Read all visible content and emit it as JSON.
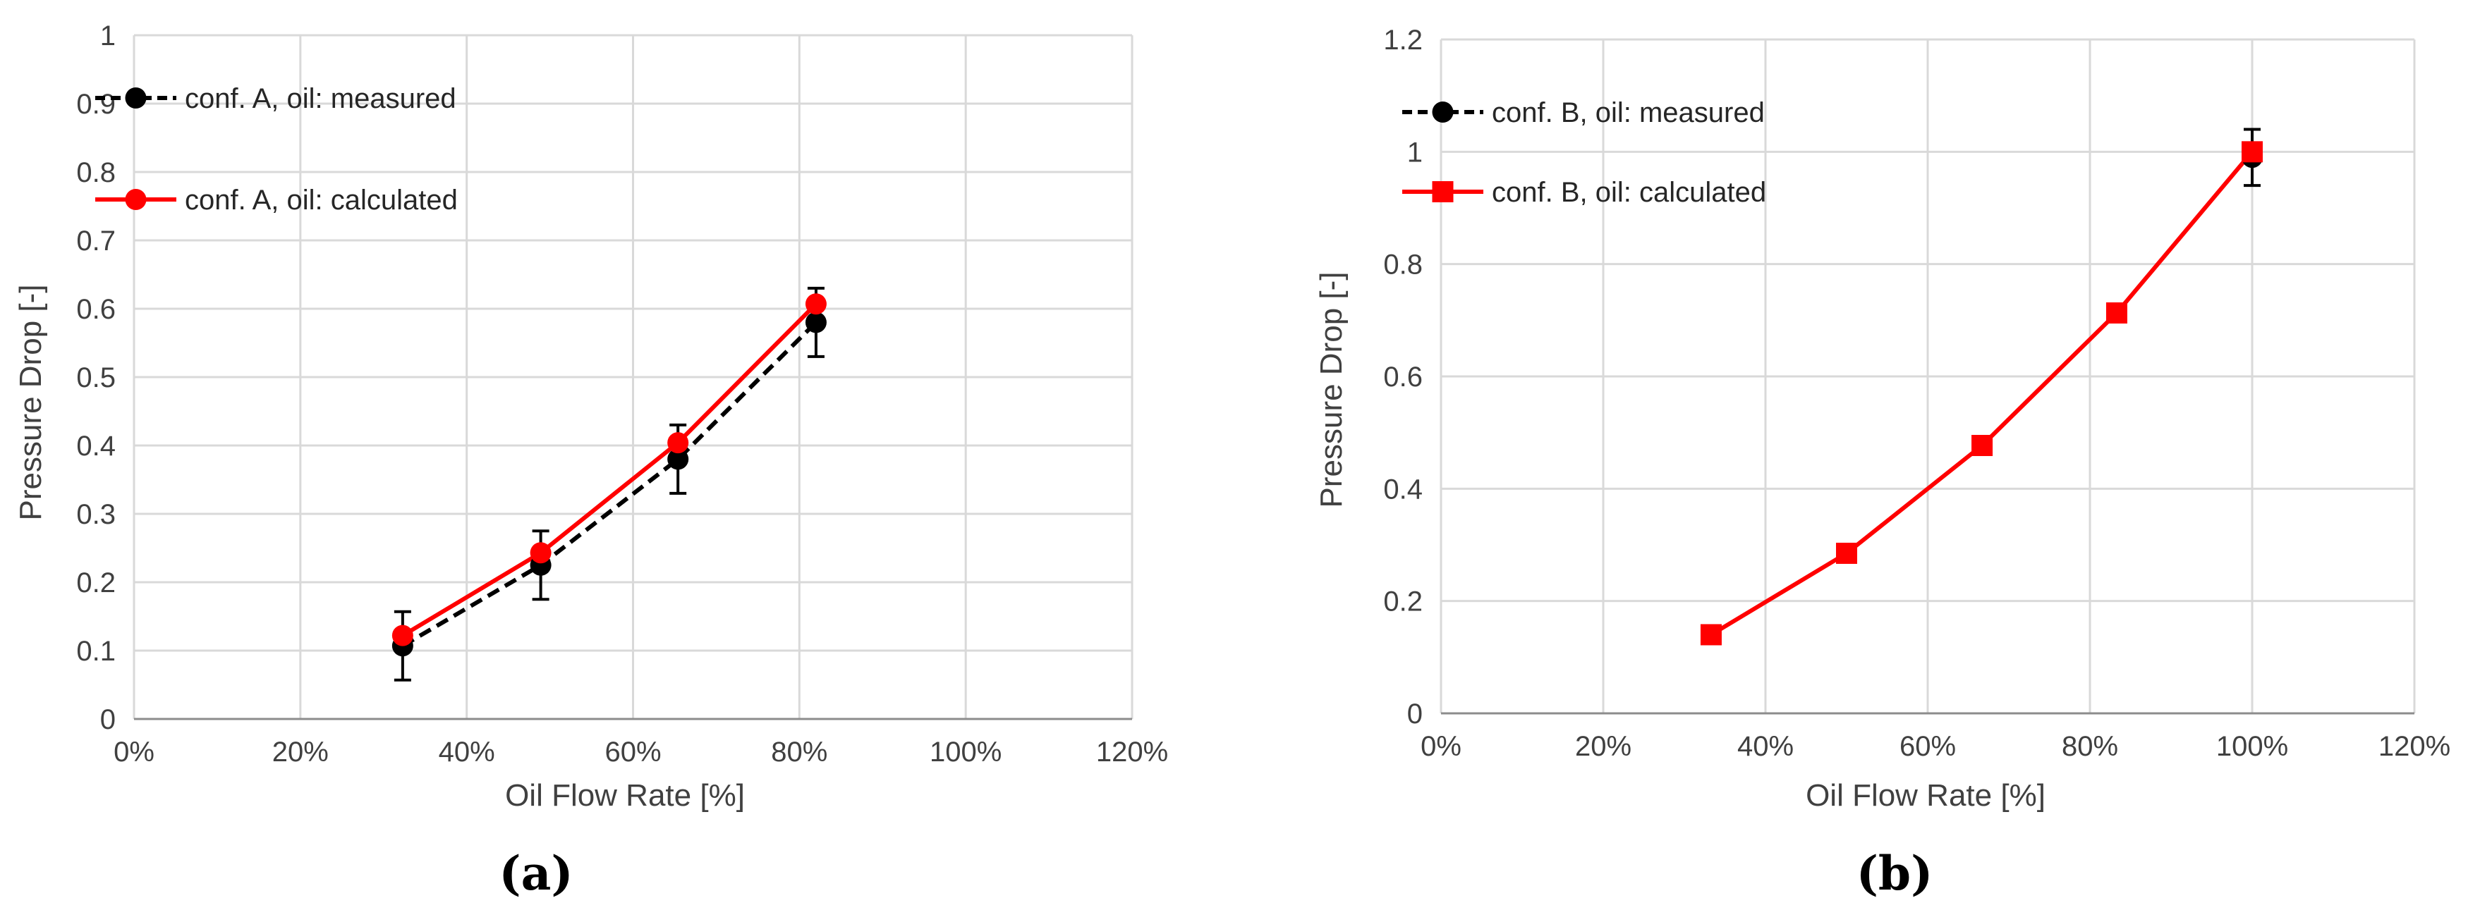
{
  "colors": {
    "measured": "#000000",
    "calculated": "#ff0000"
  },
  "chart_data": [
    {
      "type": "line",
      "caption": "(a)",
      "xlabel": "Oil Flow Rate [%]",
      "ylabel": "Pressure Drop [-]",
      "xlim": [
        0,
        1.2
      ],
      "ylim": [
        0,
        1
      ],
      "xticks": [
        0,
        0.2,
        0.4,
        0.6,
        0.8,
        1.0,
        1.2
      ],
      "xtick_labels": [
        "0%",
        "20%",
        "40%",
        "60%",
        "80%",
        "100%",
        "120%"
      ],
      "yticks": [
        0,
        0.1,
        0.2,
        0.3,
        0.4,
        0.5,
        0.6,
        0.7,
        0.8,
        0.9,
        1
      ],
      "ytick_labels": [
        "0",
        "0.1",
        "0.2",
        "0.3",
        "0.4",
        "0.5",
        "0.6",
        "0.7",
        "0.8",
        "0.9",
        "1"
      ],
      "grid": true,
      "legend_position": "top-left",
      "series": [
        {
          "name": "conf. A, oil: measured",
          "style": "dashed",
          "marker": "circle",
          "color": "#000000",
          "x": [
            0.323,
            0.489,
            0.654,
            0.82
          ],
          "y": [
            0.107,
            0.225,
            0.38,
            0.58
          ],
          "error": [
            0.05,
            0.05,
            0.05,
            0.05
          ]
        },
        {
          "name": "conf. A, oil: calculated",
          "style": "solid",
          "marker": "circle",
          "color": "#ff0000",
          "x": [
            0.323,
            0.489,
            0.654,
            0.82
          ],
          "y": [
            0.122,
            0.243,
            0.404,
            0.607
          ]
        }
      ]
    },
    {
      "type": "line",
      "caption": "(b)",
      "xlabel": "Oil Flow Rate [%]",
      "ylabel": "Pressure Drop [-]",
      "xlim": [
        0,
        1.2
      ],
      "ylim": [
        0,
        1.2
      ],
      "xticks": [
        0,
        0.2,
        0.4,
        0.6,
        0.8,
        1.0,
        1.2
      ],
      "xtick_labels": [
        "0%",
        "20%",
        "40%",
        "60%",
        "80%",
        "100%",
        "120%"
      ],
      "yticks": [
        0,
        0.2,
        0.4,
        0.6,
        0.8,
        1,
        1.2
      ],
      "ytick_labels": [
        "0",
        "0.2",
        "0.4",
        "0.6",
        "0.8",
        "1",
        "1.2"
      ],
      "grid": true,
      "legend_position": "top-left",
      "series": [
        {
          "name": "conf. B, oil: measured",
          "style": "dashed",
          "marker": "circle",
          "color": "#000000",
          "x": [
            1.0
          ],
          "y": [
            0.99
          ],
          "error": [
            0.05
          ]
        },
        {
          "name": "conf. B, oil: calculated",
          "style": "solid",
          "marker": "square",
          "color": "#ff0000",
          "x": [
            0.333,
            0.5,
            0.667,
            0.833,
            1.0
          ],
          "y": [
            0.14,
            0.285,
            0.477,
            0.713,
            1.0
          ]
        }
      ]
    }
  ]
}
